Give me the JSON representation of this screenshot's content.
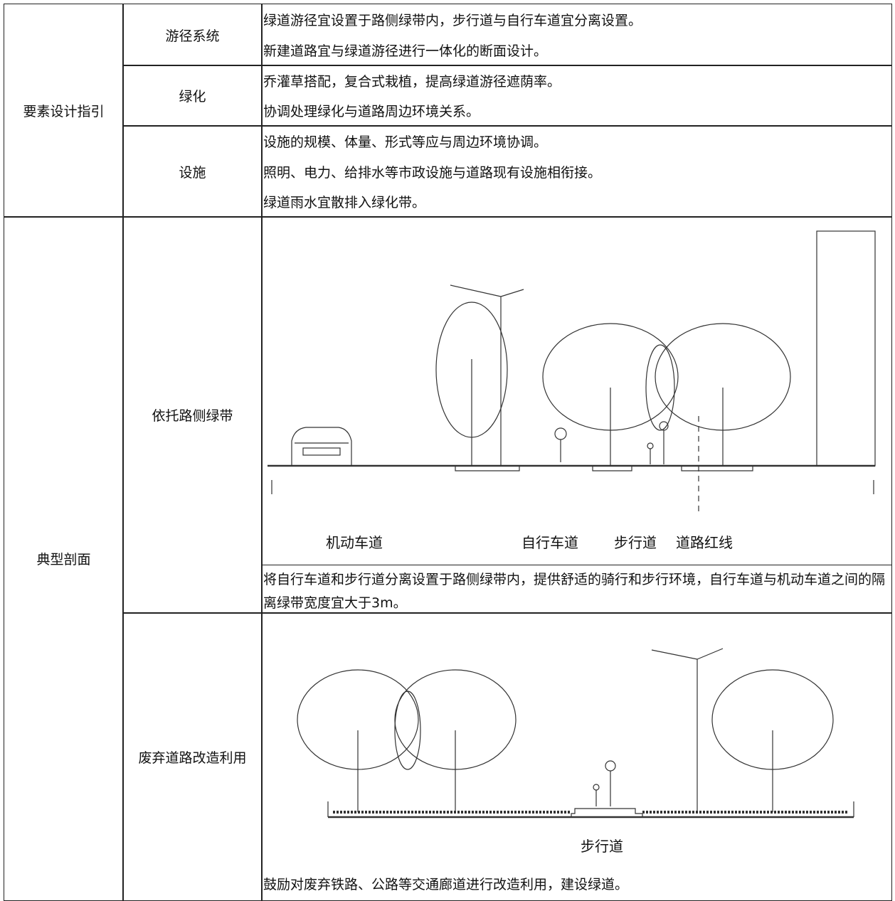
{
  "guide": {
    "label": "要素设计指引",
    "rows": [
      {
        "label": "游径系统",
        "lines": [
          "绿道游径宜设置于路侧绿带内，步行道与自行车道宜分离设置。",
          "新建道路宜与绿道游径进行一体化的断面设计。"
        ]
      },
      {
        "label": "绿化",
        "lines": [
          "乔灌草搭配，复合式栽植，提高绿道游径遮荫率。",
          "协调处理绿化与道路周边环境关系。"
        ]
      },
      {
        "label": "设施",
        "lines": [
          "设施的规模、体量、形式等应与周边环境协调。",
          "照明、电力、给排水等市政设施与道路现有设施相衔接。",
          "绿道雨水宜散排入绿化带。"
        ]
      }
    ]
  },
  "sections": {
    "label": "典型剖面",
    "rows": [
      {
        "label": "依托路侧绿带",
        "figure_labels": [
          "机动车道",
          "自行车道",
          "步行道",
          "道路红线"
        ],
        "description": "将自行车道和步行道分离设置于路侧绿带内，提供舒适的骑行和步行环境，自行车道与机动车道之间的隔离绿带宽度宜大于3m。"
      },
      {
        "label": "废弃道路改造利用",
        "figure_labels": [
          "步行道"
        ],
        "description": "鼓励对废弃铁路、公路等交通廊道进行改造利用，建设绿道。"
      }
    ]
  }
}
